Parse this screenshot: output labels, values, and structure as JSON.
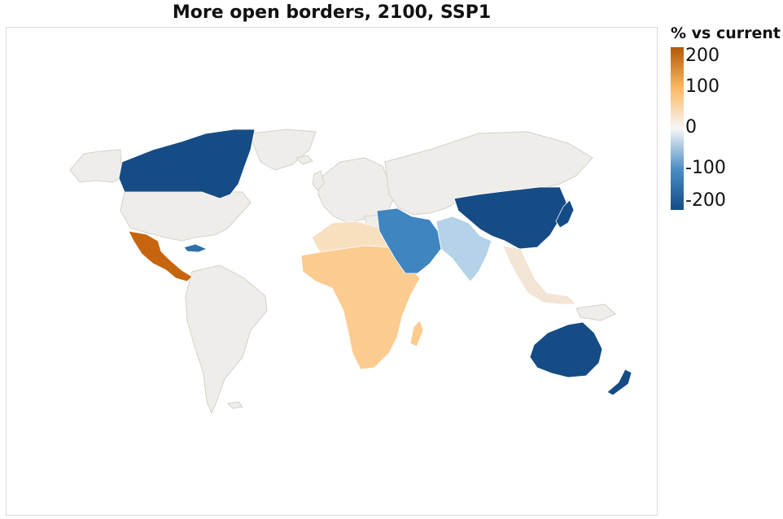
{
  "title": "More open borders, 2100, SSP1",
  "legend": {
    "title": "% vs current",
    "ticks": [
      "200",
      "100",
      "0",
      "-100",
      "-200"
    ],
    "colors": {
      "high": "#b35806",
      "mid_high": "#fdb863",
      "zero": "#f7f7f7",
      "mid_low": "#4a8ec4",
      "low": "#154c85"
    }
  },
  "colors": {
    "neutral": "#efede9",
    "border": "#d4d1cb",
    "ocean": "#ffffff",
    "frame": "#d9d9d9"
  },
  "regions": [
    {
      "name": "Canada",
      "value": -200,
      "color": "#154c85"
    },
    {
      "name": "Mexico & Central America",
      "value": 200,
      "color": "#c7650f"
    },
    {
      "name": "Caribbean",
      "value": -150,
      "color": "#2f6fa8"
    },
    {
      "name": "Sub-Saharan Africa",
      "value": 100,
      "color": "#fccb90"
    },
    {
      "name": "North Africa",
      "value": 50,
      "color": "#f8dfc0"
    },
    {
      "name": "Middle East",
      "value": -150,
      "color": "#3f86c1"
    },
    {
      "name": "South Asia",
      "value": -80,
      "color": "#b5d3e8"
    },
    {
      "name": "East Asia",
      "value": -200,
      "color": "#154c85"
    },
    {
      "name": "Southeast Asia",
      "value": 20,
      "color": "#f3e5d6"
    },
    {
      "name": "Oceania",
      "value": -200,
      "color": "#154c85"
    },
    {
      "name": "Rest of world",
      "value": 0,
      "color": "#efede9"
    }
  ]
}
